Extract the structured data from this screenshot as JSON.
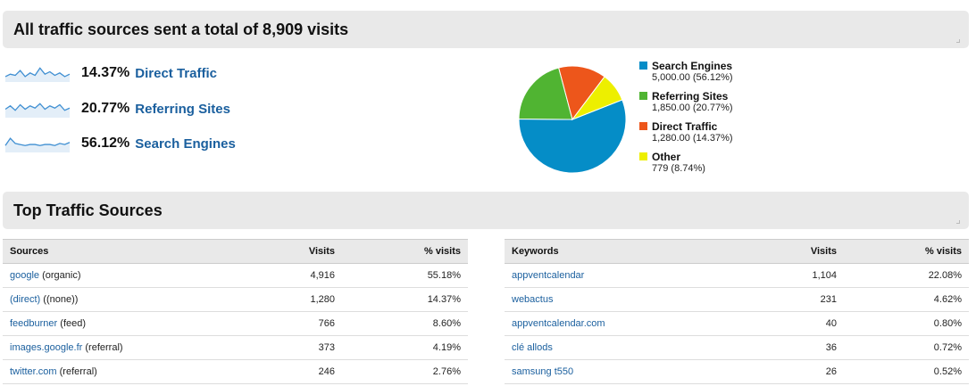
{
  "overview": {
    "title": "All traffic sources sent a total of 8,909 visits",
    "metrics": [
      {
        "percent": "14.37%",
        "label": "Direct Traffic",
        "sparkline": [
          3,
          5,
          4,
          8,
          3,
          6,
          4,
          10,
          5,
          7,
          4,
          6,
          3,
          5
        ]
      },
      {
        "percent": "20.77%",
        "label": "Referring Sites",
        "sparkline": [
          6,
          9,
          5,
          10,
          6,
          9,
          7,
          11,
          6,
          9,
          7,
          10,
          5,
          7
        ]
      },
      {
        "percent": "56.12%",
        "label": "Search Engines",
        "sparkline": [
          5,
          12,
          7,
          6,
          5,
          6,
          6,
          5,
          6,
          6,
          5,
          7,
          6,
          8
        ]
      }
    ]
  },
  "chart_data": {
    "type": "pie",
    "slices": [
      {
        "name": "Search Engines",
        "value": 5000,
        "label": "5,000.00 (56.12%)",
        "color": "#058dc7"
      },
      {
        "name": "Referring Sites",
        "value": 1850,
        "label": "1,850.00 (20.77%)",
        "color": "#50b432"
      },
      {
        "name": "Direct Traffic",
        "value": 1280,
        "label": "1,280.00 (14.37%)",
        "color": "#ed561b"
      },
      {
        "name": "Other",
        "value": 779,
        "label": "779 (8.74%)",
        "color": "#edef00"
      }
    ],
    "legend": "right"
  },
  "top_sources": {
    "title": "Top Traffic Sources",
    "sources_table": {
      "headers": [
        "Sources",
        "Visits",
        "% visits"
      ],
      "rows": [
        {
          "link": "google",
          "extra": " (organic)",
          "visits": "4,916",
          "pct": "55.18%"
        },
        {
          "link": "(direct)",
          "extra": " ((none))",
          "visits": "1,280",
          "pct": "14.37%"
        },
        {
          "link": "feedburner",
          "extra": " (feed)",
          "visits": "766",
          "pct": "8.60%"
        },
        {
          "link": "images.google.fr",
          "extra": " (referral)",
          "visits": "373",
          "pct": "4.19%"
        },
        {
          "link": "twitter.com",
          "extra": " (referral)",
          "visits": "246",
          "pct": "2.76%"
        }
      ]
    },
    "keywords_table": {
      "headers": [
        "Keywords",
        "Visits",
        "% visits"
      ],
      "rows": [
        {
          "link": "appventcalendar",
          "visits": "1,104",
          "pct": "22.08%"
        },
        {
          "link": "webactus",
          "visits": "231",
          "pct": "4.62%"
        },
        {
          "link": "appventcalendar.com",
          "visits": "40",
          "pct": "0.80%"
        },
        {
          "link": "clé allods",
          "visits": "36",
          "pct": "0.72%"
        },
        {
          "link": "samsung t550",
          "visits": "26",
          "pct": "0.52%"
        }
      ]
    }
  },
  "colors": {
    "link": "#1a5f9e",
    "sparkline": "#3f8fd2",
    "header_bg": "#e9e9e9"
  }
}
